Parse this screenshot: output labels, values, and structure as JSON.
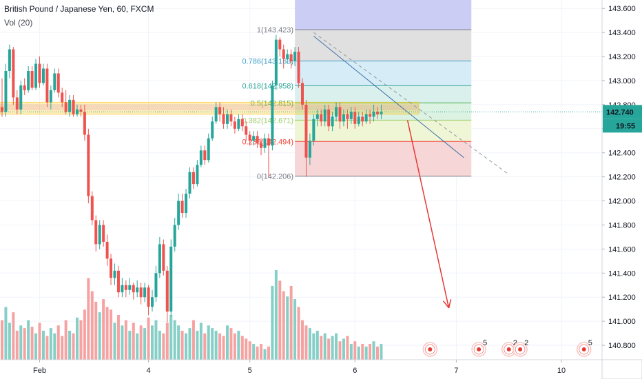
{
  "header": {
    "title": "British Pound / Japanese Yen, 60, FXCM",
    "volume_label": "Vol (20)"
  },
  "price_label": {
    "value": "142.740",
    "time": "19:55"
  },
  "colors": {
    "up": "#26a69a",
    "down": "#ef5350",
    "up_volume": "#85cfc7",
    "down_volume": "#f5a3a2",
    "last_price": "#26a69a",
    "trend_line": "#3d6fa8",
    "arrow": "#e53935"
  },
  "chart_data": {
    "type": "candlestick",
    "title": "British Pound / Japanese Yen, 60, FXCM",
    "ylim": [
      140.68,
      143.67
    ],
    "y_ticks": [
      "140.800",
      "141.000",
      "141.200",
      "141.400",
      "141.600",
      "141.800",
      "142.000",
      "142.200",
      "142.400",
      "142.600",
      "142.800",
      "143.000",
      "143.200",
      "143.400",
      "143.600"
    ],
    "x_ticks": [
      {
        "label": "Feb",
        "index": 10
      },
      {
        "label": "4",
        "index": 39
      },
      {
        "label": "5",
        "index": 66
      },
      {
        "label": "6",
        "index": 94
      },
      {
        "label": "7",
        "index": 121
      },
      {
        "label": "10",
        "index": 149
      }
    ],
    "last_price": 142.74,
    "candles": [
      [
        142.78,
        142.74,
        143.02,
        142.7
      ],
      [
        142.74,
        143.08,
        143.14,
        142.7
      ],
      [
        143.08,
        143.26,
        143.3,
        143.02
      ],
      [
        143.26,
        142.86,
        143.28,
        142.8
      ],
      [
        142.86,
        142.76,
        142.92,
        142.72
      ],
      [
        142.76,
        142.96,
        143.0,
        142.72
      ],
      [
        142.96,
        142.92,
        143.02,
        142.88
      ],
      [
        142.92,
        143.08,
        143.12,
        142.9
      ],
      [
        143.08,
        142.94,
        143.12,
        142.92
      ],
      [
        142.94,
        143.14,
        143.18,
        142.92
      ],
      [
        143.14,
        142.98,
        143.2,
        142.94
      ],
      [
        142.98,
        143.1,
        143.14,
        142.96
      ],
      [
        143.1,
        142.82,
        143.14,
        142.78
      ],
      [
        142.82,
        142.92,
        142.96,
        142.76
      ],
      [
        142.92,
        143.06,
        143.1,
        142.9
      ],
      [
        143.06,
        142.9,
        143.1,
        142.86
      ],
      [
        142.9,
        142.82,
        142.94,
        142.78
      ],
      [
        142.82,
        142.74,
        142.92,
        142.72
      ],
      [
        142.74,
        142.84,
        142.88,
        142.7
      ],
      [
        142.84,
        142.72,
        142.88,
        142.7
      ],
      [
        142.72,
        142.76,
        142.8,
        142.7
      ],
      [
        142.76,
        142.74,
        142.8,
        142.7
      ],
      [
        142.74,
        142.55,
        142.8,
        142.5
      ],
      [
        142.55,
        142.04,
        142.6,
        141.98
      ],
      [
        142.04,
        141.84,
        142.08,
        141.8
      ],
      [
        141.84,
        141.64,
        141.88,
        141.58
      ],
      [
        141.64,
        141.8,
        141.84,
        141.6
      ],
      [
        141.8,
        141.66,
        141.84,
        141.62
      ],
      [
        141.66,
        141.52,
        141.72,
        141.46
      ],
      [
        141.52,
        141.36,
        141.56,
        141.3
      ],
      [
        141.36,
        141.42,
        141.48,
        141.3
      ],
      [
        141.42,
        141.24,
        141.46,
        141.2
      ],
      [
        141.24,
        141.3,
        141.36,
        141.2
      ],
      [
        141.3,
        141.26,
        141.34,
        141.2
      ],
      [
        141.26,
        141.3,
        141.36,
        141.22
      ],
      [
        141.3,
        141.24,
        141.32,
        141.18
      ],
      [
        141.24,
        141.28,
        141.34,
        141.2
      ],
      [
        141.28,
        141.2,
        141.32,
        141.14
      ],
      [
        141.2,
        141.28,
        141.32,
        141.16
      ],
      [
        141.28,
        141.12,
        141.3,
        141.05
      ],
      [
        141.12,
        141.2,
        141.26,
        141.08
      ],
      [
        141.2,
        141.4,
        141.46,
        141.16
      ],
      [
        141.4,
        141.64,
        141.7,
        141.36
      ],
      [
        141.64,
        141.42,
        141.68,
        141.38
      ],
      [
        141.42,
        141.08,
        141.46,
        140.99
      ],
      [
        141.08,
        141.62,
        141.68,
        141.04
      ],
      [
        141.62,
        141.8,
        141.86,
        141.58
      ],
      [
        141.8,
        142.0,
        142.06,
        141.76
      ],
      [
        142.0,
        141.9,
        142.06,
        141.86
      ],
      [
        141.9,
        142.06,
        142.1,
        141.86
      ],
      [
        142.06,
        142.24,
        142.28,
        142.02
      ],
      [
        142.24,
        142.14,
        142.28,
        142.1
      ],
      [
        142.14,
        142.3,
        142.34,
        142.12
      ],
      [
        142.3,
        142.42,
        142.46,
        142.28
      ],
      [
        142.42,
        142.34,
        142.46,
        142.3
      ],
      [
        142.34,
        142.52,
        142.56,
        142.32
      ],
      [
        142.52,
        142.66,
        142.7,
        142.5
      ],
      [
        142.66,
        142.78,
        142.82,
        142.64
      ],
      [
        142.78,
        142.72,
        142.82,
        142.66
      ],
      [
        142.72,
        142.64,
        142.78,
        142.6
      ],
      [
        142.64,
        142.72,
        142.76,
        142.6
      ],
      [
        142.72,
        142.66,
        142.76,
        142.62
      ],
      [
        142.66,
        142.6,
        142.7,
        142.56
      ],
      [
        142.6,
        142.68,
        142.72,
        142.58
      ],
      [
        142.68,
        142.62,
        142.72,
        142.58
      ],
      [
        142.62,
        142.55,
        142.66,
        142.5
      ],
      [
        142.55,
        142.5,
        142.58,
        142.46
      ],
      [
        142.5,
        142.54,
        142.58,
        142.46
      ],
      [
        142.54,
        142.48,
        142.58,
        142.44
      ],
      [
        142.48,
        142.44,
        142.52,
        142.38
      ],
      [
        142.44,
        142.52,
        142.56,
        142.4
      ],
      [
        142.52,
        142.46,
        142.56,
        142.2
      ],
      [
        142.46,
        142.96,
        143.0,
        142.42
      ],
      [
        142.96,
        143.34,
        143.38,
        142.92
      ],
      [
        143.34,
        143.26,
        143.36,
        143.2
      ],
      [
        143.26,
        143.18,
        143.3,
        143.1
      ],
      [
        143.18,
        143.22,
        143.26,
        143.14
      ],
      [
        143.22,
        143.16,
        143.26,
        143.1
      ],
      [
        143.16,
        143.24,
        143.28,
        143.12
      ],
      [
        143.24,
        142.98,
        143.28,
        142.94
      ],
      [
        142.98,
        142.8,
        143.02,
        142.76
      ],
      [
        142.8,
        142.36,
        142.84,
        142.2
      ],
      [
        142.36,
        142.5,
        142.56,
        142.3
      ],
      [
        142.5,
        142.68,
        142.72,
        142.46
      ],
      [
        142.68,
        142.72,
        142.76,
        142.62
      ],
      [
        142.72,
        142.66,
        142.76,
        142.62
      ],
      [
        142.66,
        142.76,
        142.8,
        142.62
      ],
      [
        142.76,
        142.62,
        142.8,
        142.58
      ],
      [
        142.62,
        142.7,
        142.74,
        142.58
      ],
      [
        142.7,
        142.78,
        142.82,
        142.66
      ],
      [
        142.78,
        142.66,
        142.82,
        142.6
      ],
      [
        142.66,
        142.72,
        142.76,
        142.62
      ],
      [
        142.72,
        142.68,
        142.76,
        142.6
      ],
      [
        142.68,
        142.74,
        142.78,
        142.64
      ],
      [
        142.74,
        142.64,
        142.78,
        142.6
      ],
      [
        142.64,
        142.7,
        142.74,
        142.62
      ],
      [
        142.7,
        142.66,
        142.74,
        142.62
      ],
      [
        142.66,
        142.72,
        142.76,
        142.64
      ],
      [
        142.72,
        142.7,
        142.76,
        142.64
      ],
      [
        142.7,
        142.74,
        142.8,
        142.66
      ],
      [
        142.74,
        142.72,
        142.78,
        142.68
      ],
      [
        142.72,
        142.74,
        142.8,
        142.68
      ]
    ],
    "volumes": [
      30,
      40,
      28,
      36,
      22,
      26,
      24,
      30,
      25,
      20,
      28,
      22,
      18,
      24,
      20,
      26,
      18,
      30,
      22,
      20,
      32,
      30,
      38,
      62,
      52,
      44,
      36,
      46,
      40,
      38,
      28,
      34,
      26,
      30,
      22,
      28,
      20,
      26,
      24,
      32,
      26,
      30,
      22,
      20,
      28,
      34,
      30,
      26,
      22,
      20,
      24,
      30,
      22,
      28,
      20,
      26,
      24,
      22,
      20,
      18,
      26,
      24,
      20,
      22,
      18,
      16,
      14,
      12,
      10,
      12,
      8,
      10,
      56,
      68,
      60,
      52,
      48,
      56,
      46,
      40,
      30,
      26,
      24,
      20,
      22,
      18,
      20,
      16,
      18,
      20,
      14,
      16,
      18,
      12,
      14,
      10,
      12,
      10,
      12,
      14,
      10,
      12
    ],
    "fib_levels": [
      {
        "ratio": "1",
        "price": 143.423,
        "label": "1(143.423)"
      },
      {
        "ratio": "0.786",
        "price": 143.163,
        "label": "0.786(143.163)"
      },
      {
        "ratio": "0.618",
        "price": 142.958,
        "label": "0.618(142.958)"
      },
      {
        "ratio": "0.5",
        "price": 142.815,
        "label": "0.5(142.815)"
      },
      {
        "ratio": "0.382",
        "price": 142.671,
        "label": "0.382(142.671)"
      },
      {
        "ratio": "0.236",
        "price": 142.494,
        "label": "0.236(142.494)"
      },
      {
        "ratio": "0",
        "price": 142.206,
        "label": "0(142.206)"
      }
    ],
    "trend_lines": [
      {
        "style": "solid",
        "from": {
          "index": 83,
          "price": 143.37
        },
        "to": {
          "index": 123,
          "price": 142.36
        }
      },
      {
        "style": "dashed",
        "from": {
          "index": 83,
          "price": 143.4
        },
        "to": {
          "index": 135,
          "price": 142.22
        }
      }
    ],
    "resistance_band": {
      "low": 142.72,
      "high": 142.82
    },
    "projection_arrow": {
      "from": {
        "index": 108,
        "price": 142.67
      },
      "to": {
        "index": 119,
        "price": 141.11
      }
    },
    "event_markers": [
      {
        "index": 114,
        "badge": ""
      },
      {
        "index": 127,
        "badge": "5"
      },
      {
        "index": 135,
        "badge": "2"
      },
      {
        "index": 138,
        "badge": "2"
      },
      {
        "index": 155,
        "badge": "5"
      },
      {
        "index": 162,
        "badge": ""
      }
    ]
  }
}
